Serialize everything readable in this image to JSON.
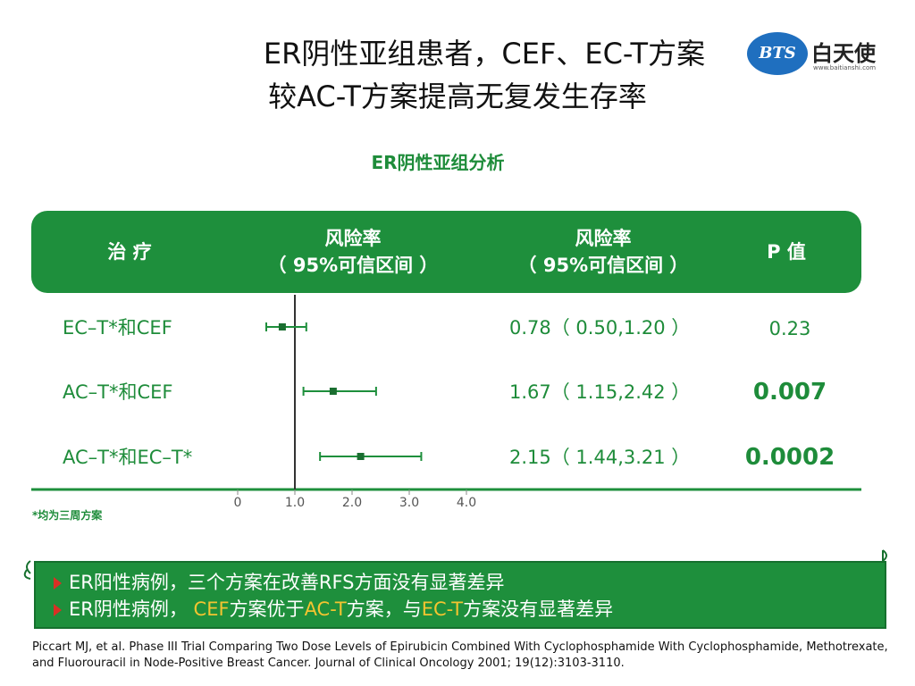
{
  "title": {
    "line1": "ER阴性亚组患者，CEF、EC-T方案",
    "line2": "较AC-T方案提高无复发生存率"
  },
  "logo": {
    "badge": "BTS",
    "name": "白天使",
    "url": "www.baitianshi.com"
  },
  "chart_data": {
    "type": "forest",
    "title": "ER阴性亚组分析",
    "columns": {
      "treatment": "治 疗",
      "hr_plot_line1": "风险率",
      "hr_plot_line2": "（ 95%可信区间 ）",
      "hr_text_line1": "风险率",
      "hr_text_line2": "（ 95%可信区间 ）",
      "p_value": "P 值"
    },
    "rows": [
      {
        "label": "EC–T*和CEF",
        "hr": 0.78,
        "ci": [
          0.5,
          1.2
        ],
        "hr_text": "0.78（ 0.50,1.20 ）",
        "p": "0.23",
        "emphasis": false
      },
      {
        "label": "AC–T*和CEF",
        "hr": 1.67,
        "ci": [
          1.15,
          2.42
        ],
        "hr_text": "1.67（ 1.15,2.42 ）",
        "p": "0.007",
        "emphasis": true
      },
      {
        "label": "AC–T*和EC–T*",
        "hr": 2.15,
        "ci": [
          1.44,
          3.21
        ],
        "hr_text": "2.15（ 1.44,3.21 ）",
        "p": "0.0002",
        "emphasis": true
      }
    ],
    "x_ticks": [
      "0",
      "1.0",
      "2.0",
      "3.0",
      "4.0"
    ],
    "x_tick_values": [
      0,
      1,
      2,
      3,
      4
    ],
    "xlim": [
      0,
      4
    ],
    "reference_line": 1.0,
    "footnote": "*均为三周方案"
  },
  "banner": {
    "bullet1": "ER阳性病例，三个方案在改善RFS方面没有显著差异",
    "bullet2_prefix": "ER阴性病例， ",
    "bullet2_cef": "CEF",
    "bullet2_mid": "方案优于",
    "bullet2_act": "AC-T",
    "bullet2_mid2": "方案，与",
    "bullet2_ect": "EC-T",
    "bullet2_suffix": "方案没有显著差异",
    "highlight_color": "#f4c430"
  },
  "citation": "Piccart MJ, et al. Phase III Trial Comparing Two Dose Levels of Epirubicin Combined With Cyclophosphamide With Cyclophosphamide, Methotrexate, and Fluorouracil in Node-Positive Breast Cancer. Journal of Clinical Oncology 2001; 19(12):3103-3110.",
  "colors": {
    "green": "#1e8f3c",
    "text_green": "#1e8c3a",
    "bullet_red": "#d93025"
  }
}
